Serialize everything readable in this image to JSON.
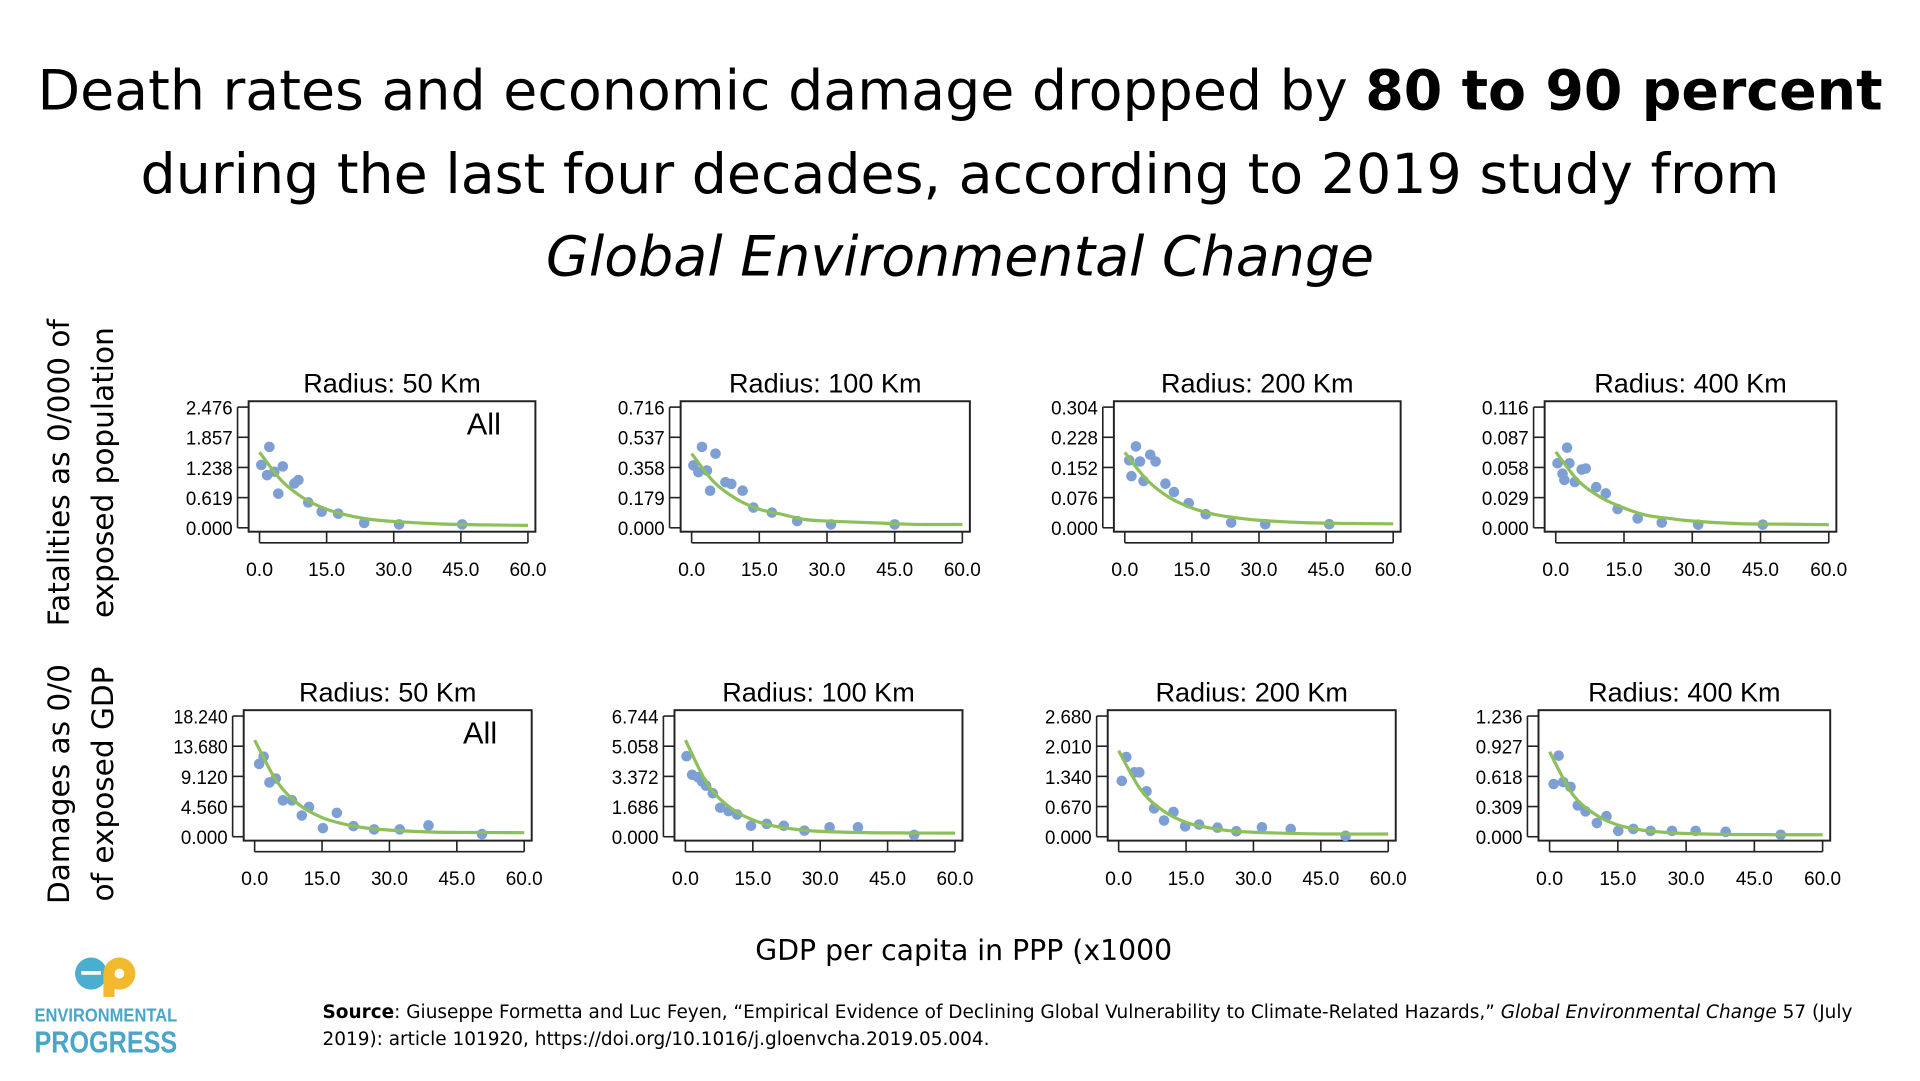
{
  "title": {
    "line1_regular": "Death rates and economic damage dropped by ",
    "line1_bold": "80 to 90 percent",
    "line2": "during the last four decades, according to 2019 study from",
    "line3_italic": "Global Environmental Change"
  },
  "row_labels": {
    "fatalities": [
      "Fatalities as 0/000 of",
      "exposed population"
    ],
    "damages": [
      "Damages as 0/0",
      "of exposed GDP"
    ]
  },
  "xlabel": "GDP per capita in PPP (x1000",
  "logo": {
    "line1": "ENVIRONMENTAL",
    "line2": "PROGRESS",
    "colors": {
      "e": "#4aaed0",
      "p": "#f2b92e",
      "text": "#4aa6c8"
    }
  },
  "source": {
    "label": "Source",
    "text1": ": Giuseppe Formetta and Luc Feyen, “Empirical Evidence of Declining Global Vulnerability to Climate-Related Hazards,” ",
    "journal": "Global Environmental Change",
    "text2": " 57 (July 2019): article 101920, https://doi.org/10.1016/j.gloenvcha.2019.05.004."
  },
  "colors": {
    "points": "#7d9fd3",
    "fit": "#8dbf5b",
    "axis": "#222222"
  },
  "chart_data": [
    {
      "type": "scatter",
      "row": "fatalities",
      "title": "Radius: 50 Km",
      "annotation": "All",
      "xticks": [
        "0.0",
        "15.0",
        "30.0",
        "45.0",
        "60.0"
      ],
      "xlim": [
        0,
        60
      ],
      "yticks": [
        "0.000",
        "0.619",
        "1.238",
        "1.857",
        "2.476"
      ],
      "ylim": [
        0,
        2.476
      ],
      "points": [
        [
          0.4,
          1.29
        ],
        [
          2.2,
          1.66
        ],
        [
          1.7,
          1.08
        ],
        [
          3.3,
          1.15
        ],
        [
          4.2,
          0.7
        ],
        [
          5.2,
          1.26
        ],
        [
          7.8,
          0.91
        ],
        [
          8.7,
          0.98
        ],
        [
          10.9,
          0.52
        ],
        [
          13.9,
          0.33
        ],
        [
          17.6,
          0.29
        ],
        [
          23.4,
          0.1
        ],
        [
          31.2,
          0.07
        ],
        [
          45.3,
          0.07
        ]
      ],
      "fit": [
        [
          0,
          1.55
        ],
        [
          5,
          0.96
        ],
        [
          10,
          0.6
        ],
        [
          15,
          0.38
        ],
        [
          20,
          0.25
        ],
        [
          25,
          0.17
        ],
        [
          30,
          0.13
        ],
        [
          40,
          0.08
        ],
        [
          50,
          0.06
        ],
        [
          60,
          0.05
        ]
      ]
    },
    {
      "type": "scatter",
      "row": "fatalities",
      "title": "Radius: 100 Km",
      "annotation": "",
      "xticks": [
        "0.0",
        "15.0",
        "30.0",
        "45.0",
        "60.0"
      ],
      "xlim": [
        0,
        60
      ],
      "yticks": [
        "0.000",
        "0.179",
        "0.358",
        "0.537",
        "0.716"
      ],
      "ylim": [
        0,
        0.716
      ],
      "points": [
        [
          0.4,
          0.37
        ],
        [
          1.5,
          0.33
        ],
        [
          2.3,
          0.48
        ],
        [
          3.4,
          0.34
        ],
        [
          4.1,
          0.22
        ],
        [
          5.3,
          0.44
        ],
        [
          7.5,
          0.27
        ],
        [
          8.8,
          0.26
        ],
        [
          11.3,
          0.22
        ],
        [
          13.7,
          0.12
        ],
        [
          17.8,
          0.09
        ],
        [
          23.4,
          0.04
        ],
        [
          30.9,
          0.02
        ],
        [
          45,
          0.02
        ]
      ],
      "fit": [
        [
          0,
          0.44
        ],
        [
          5,
          0.27
        ],
        [
          10,
          0.17
        ],
        [
          15,
          0.11
        ],
        [
          20,
          0.08
        ],
        [
          25,
          0.05
        ],
        [
          30,
          0.04
        ],
        [
          40,
          0.03
        ],
        [
          50,
          0.02
        ],
        [
          60,
          0.02
        ]
      ]
    },
    {
      "type": "scatter",
      "row": "fatalities",
      "title": "Radius: 200 Km",
      "annotation": "",
      "xticks": [
        "0.0",
        "15.0",
        "30.0",
        "45.0",
        "60.0"
      ],
      "xlim": [
        0,
        60
      ],
      "yticks": [
        "0.000",
        "0.076",
        "0.152",
        "0.228",
        "0.304"
      ],
      "ylim": [
        0,
        0.304
      ],
      "points": [
        [
          1,
          0.17
        ],
        [
          1.5,
          0.13
        ],
        [
          2.5,
          0.205
        ],
        [
          3.4,
          0.167
        ],
        [
          4.2,
          0.118
        ],
        [
          5.7,
          0.184
        ],
        [
          6.9,
          0.167
        ],
        [
          9.1,
          0.111
        ],
        [
          11,
          0.09
        ],
        [
          14.3,
          0.062
        ],
        [
          18.1,
          0.034
        ],
        [
          23.8,
          0.013
        ],
        [
          31.4,
          0.009
        ],
        [
          45.7,
          0.009
        ]
      ],
      "fit": [
        [
          0,
          0.19
        ],
        [
          5,
          0.12
        ],
        [
          10,
          0.076
        ],
        [
          15,
          0.05
        ],
        [
          20,
          0.034
        ],
        [
          25,
          0.025
        ],
        [
          30,
          0.019
        ],
        [
          40,
          0.013
        ],
        [
          50,
          0.011
        ],
        [
          60,
          0.01
        ]
      ]
    },
    {
      "type": "scatter",
      "row": "fatalities",
      "title": "Radius: 400 Km",
      "annotation": "",
      "xticks": [
        "0.0",
        "15.0",
        "30.0",
        "45.0",
        "60.0"
      ],
      "xlim": [
        0,
        60
      ],
      "yticks": [
        "0.000",
        "0.029",
        "0.058",
        "0.087",
        "0.116"
      ],
      "ylim": [
        0,
        0.116
      ],
      "points": [
        [
          0.4,
          0.062
        ],
        [
          1.5,
          0.052
        ],
        [
          1.9,
          0.046
        ],
        [
          2.5,
          0.077
        ],
        [
          3,
          0.062
        ],
        [
          4.2,
          0.044
        ],
        [
          5.7,
          0.056
        ],
        [
          6.6,
          0.057
        ],
        [
          8.9,
          0.039
        ],
        [
          11,
          0.033
        ],
        [
          13.6,
          0.018
        ],
        [
          18,
          0.009
        ],
        [
          23.3,
          0.005
        ],
        [
          31.3,
          0.003
        ],
        [
          45.5,
          0.003
        ]
      ],
      "fit": [
        [
          0,
          0.073
        ],
        [
          5,
          0.045
        ],
        [
          10,
          0.029
        ],
        [
          15,
          0.019
        ],
        [
          20,
          0.012
        ],
        [
          25,
          0.009
        ],
        [
          30,
          0.0065
        ],
        [
          40,
          0.004
        ],
        [
          50,
          0.0035
        ],
        [
          60,
          0.003
        ]
      ]
    },
    {
      "type": "scatter",
      "row": "damages",
      "title": "Radius: 50 Km",
      "annotation": "All",
      "xticks": [
        "0.0",
        "15.0",
        "30.0",
        "45.0",
        "60.0"
      ],
      "xlim": [
        0,
        60
      ],
      "yticks": [
        "0.000",
        "4.560",
        "9.120",
        "13.680",
        "18.240"
      ],
      "ylim": [
        0,
        18.24
      ],
      "points": [
        [
          1,
          11.0
        ],
        [
          2,
          12.1
        ],
        [
          3.3,
          8.2
        ],
        [
          4.7,
          8.8
        ],
        [
          6.3,
          5.5
        ],
        [
          8.3,
          5.5
        ],
        [
          10.5,
          3.2
        ],
        [
          12.1,
          4.5
        ],
        [
          15.2,
          1.3
        ],
        [
          18.3,
          3.6
        ],
        [
          22,
          1.6
        ],
        [
          26.6,
          1.1
        ],
        [
          32.3,
          1.1
        ],
        [
          38.7,
          1.7
        ],
        [
          50.6,
          0.4
        ]
      ],
      "fit": [
        [
          0,
          14.6
        ],
        [
          5,
          8.3
        ],
        [
          10,
          4.8
        ],
        [
          15,
          2.9
        ],
        [
          20,
          1.9
        ],
        [
          25,
          1.3
        ],
        [
          30,
          1.0
        ],
        [
          40,
          0.7
        ],
        [
          50,
          0.64
        ],
        [
          60,
          0.61
        ]
      ]
    },
    {
      "type": "scatter",
      "row": "damages",
      "title": "Radius: 100 Km",
      "annotation": "",
      "xticks": [
        "0.0",
        "15.0",
        "30.0",
        "45.0",
        "60.0"
      ],
      "xlim": [
        0,
        60
      ],
      "yticks": [
        "0.000",
        "1.686",
        "3.372",
        "5.058",
        "6.744"
      ],
      "ylim": [
        0,
        6.744
      ],
      "points": [
        [
          0.25,
          4.5
        ],
        [
          1.5,
          3.46
        ],
        [
          2.75,
          3.33
        ],
        [
          3.75,
          3.08
        ],
        [
          4.6,
          2.85
        ],
        [
          6.1,
          2.43
        ],
        [
          7.75,
          1.62
        ],
        [
          9.6,
          1.43
        ],
        [
          11.5,
          1.24
        ],
        [
          14.6,
          0.61
        ],
        [
          18.1,
          0.72
        ],
        [
          21.9,
          0.61
        ],
        [
          26.5,
          0.34
        ],
        [
          32.1,
          0.53
        ],
        [
          38.4,
          0.53
        ],
        [
          50.9,
          0.1
        ]
      ],
      "fit": [
        [
          0,
          5.4
        ],
        [
          5,
          2.91
        ],
        [
          10,
          1.62
        ],
        [
          15,
          0.94
        ],
        [
          20,
          0.58
        ],
        [
          25,
          0.4
        ],
        [
          30,
          0.3
        ],
        [
          40,
          0.23
        ],
        [
          50,
          0.21
        ],
        [
          60,
          0.2
        ]
      ]
    },
    {
      "type": "scatter",
      "row": "damages",
      "title": "Radius: 200 Km",
      "annotation": "",
      "xticks": [
        "0.0",
        "15.0",
        "30.0",
        "45.0",
        "60.0"
      ],
      "xlim": [
        0,
        60
      ],
      "yticks": [
        "0.000",
        "0.670",
        "1.340",
        "2.010",
        "2.680"
      ],
      "ylim": [
        0,
        2.68
      ],
      "points": [
        [
          0.7,
          1.24
        ],
        [
          1.7,
          1.77
        ],
        [
          3.5,
          1.43
        ],
        [
          4.6,
          1.43
        ],
        [
          6.2,
          1.01
        ],
        [
          7.9,
          0.63
        ],
        [
          10.1,
          0.36
        ],
        [
          12.2,
          0.55
        ],
        [
          14.8,
          0.23
        ],
        [
          17.9,
          0.27
        ],
        [
          22,
          0.2
        ],
        [
          26.2,
          0.12
        ],
        [
          31.9,
          0.21
        ],
        [
          38.3,
          0.17
        ],
        [
          50.5,
          0.02
        ]
      ],
      "fit": [
        [
          0,
          1.91
        ],
        [
          5,
          1.03
        ],
        [
          10,
          0.57
        ],
        [
          15,
          0.32
        ],
        [
          20,
          0.2
        ],
        [
          25,
          0.13
        ],
        [
          30,
          0.1
        ],
        [
          40,
          0.07
        ],
        [
          50,
          0.06
        ],
        [
          60,
          0.06
        ]
      ]
    },
    {
      "type": "scatter",
      "row": "damages",
      "title": "Radius: 400 Km",
      "annotation": "",
      "xticks": [
        "0.0",
        "15.0",
        "30.0",
        "45.0",
        "60.0"
      ],
      "xlim": [
        0,
        60
      ],
      "yticks": [
        "0.000",
        "0.309",
        "0.618",
        "0.927",
        "1.236"
      ],
      "ylim": [
        0,
        1.236
      ],
      "points": [
        [
          0.9,
          0.54
        ],
        [
          2,
          0.83
        ],
        [
          3,
          0.56
        ],
        [
          4.6,
          0.51
        ],
        [
          6.2,
          0.32
        ],
        [
          7.9,
          0.26
        ],
        [
          10.4,
          0.14
        ],
        [
          12.5,
          0.21
        ],
        [
          15.1,
          0.06
        ],
        [
          18.4,
          0.08
        ],
        [
          22.2,
          0.06
        ],
        [
          26.9,
          0.06
        ],
        [
          32.1,
          0.06
        ],
        [
          38.7,
          0.05
        ],
        [
          50.8,
          0.02
        ]
      ],
      "fit": [
        [
          0,
          0.87
        ],
        [
          5,
          0.44
        ],
        [
          10,
          0.23
        ],
        [
          15,
          0.12
        ],
        [
          20,
          0.07
        ],
        [
          25,
          0.046
        ],
        [
          30,
          0.033
        ],
        [
          40,
          0.023
        ],
        [
          50,
          0.021
        ],
        [
          60,
          0.02
        ]
      ]
    }
  ]
}
